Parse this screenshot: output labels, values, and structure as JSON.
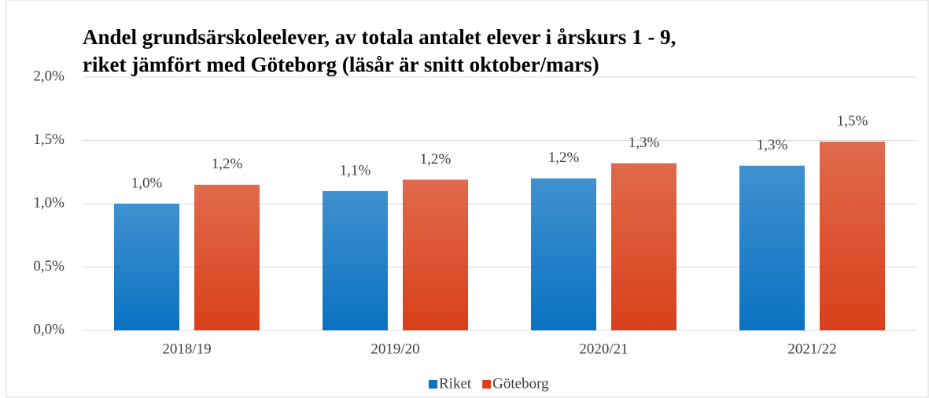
{
  "chart_data": {
    "type": "bar",
    "title": [
      "Andel grundsärskoleelever, av totala antalet elever i årskurs 1 - 9,",
      "riket jämfört med Göteborg (läsår är snitt oktober/mars)"
    ],
    "categories": [
      "2018/19",
      "2019/20",
      "2020/21",
      "2021/22"
    ],
    "series": [
      {
        "name": "Riket",
        "color": "#0a72c2",
        "values": [
          1.0,
          1.1,
          1.2,
          1.3
        ],
        "value_labels": [
          "1,0%",
          "1,1%",
          "1,2%",
          "1,3%"
        ]
      },
      {
        "name": "Göteborg",
        "color": "#d8401a",
        "values": [
          1.15,
          1.19,
          1.32,
          1.49
        ],
        "value_labels": [
          "1,2%",
          "1,2%",
          "1,3%",
          "1,5%"
        ]
      }
    ],
    "ylim": [
      0,
      2.0
    ],
    "yticks": [
      {
        "value": 0,
        "label": "0,0%"
      },
      {
        "value": 0.5,
        "label": "0,5%"
      },
      {
        "value": 1.0,
        "label": "1,0%"
      },
      {
        "value": 1.5,
        "label": "1,5%"
      },
      {
        "value": 2.0,
        "label": "2,0%"
      }
    ],
    "grid": true,
    "legend": "bottom"
  }
}
